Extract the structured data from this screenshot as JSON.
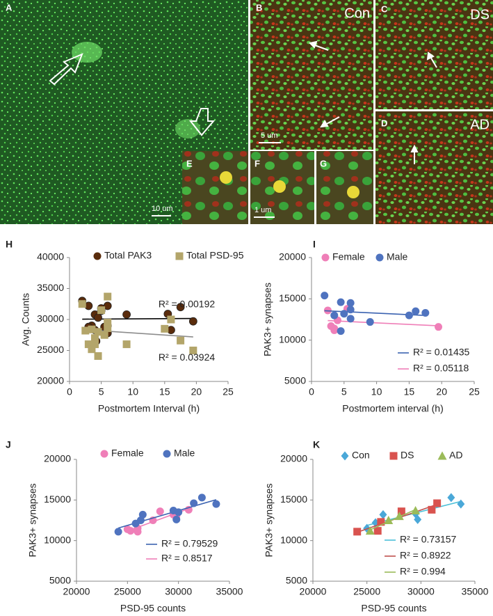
{
  "image_panels": [
    {
      "label": "A",
      "scale_bar": "10 um"
    },
    {
      "label": "B",
      "group": "Con",
      "scale_bar": "5 um"
    },
    {
      "label": "C",
      "group": "DS"
    },
    {
      "label": "D",
      "group": "AD"
    },
    {
      "label": "E"
    },
    {
      "label": "F",
      "scale_bar": "1 um"
    },
    {
      "label": "G"
    }
  ],
  "chart_data": [
    {
      "type": "scatter",
      "panel": "H",
      "xlabel": "Postmortem Interval (h)",
      "ylabel": "Avg. Counts",
      "xlim": [
        0,
        25
      ],
      "xticks": [
        0,
        5,
        10,
        15,
        20,
        25
      ],
      "ylim": [
        20000,
        40000
      ],
      "yticks": [
        20000,
        25000,
        30000,
        35000,
        40000
      ],
      "series": [
        {
          "name": "Total PAK3",
          "color": "#5a2c0c",
          "marker": "circle",
          "trend_color": "#000000",
          "fit_label": "R² = 0.00192",
          "x": [
            2,
            3,
            3.5,
            4,
            4.2,
            4.5,
            5,
            5,
            5.5,
            6,
            6,
            6,
            9,
            15.5,
            16,
            17.5,
            19.5,
            4,
            3
          ],
          "values": [
            33000,
            32200,
            29000,
            30800,
            26500,
            30300,
            31800,
            31400,
            28800,
            29000,
            32200,
            27800,
            30800,
            30900,
            28300,
            32000,
            29700,
            28300,
            28800
          ]
        },
        {
          "name": "Total PSD-95",
          "color": "#b3a56a",
          "marker": "square",
          "trend_color": "#8c8c8c",
          "fit_label": "R² = 0.03924",
          "x": [
            2,
            2.5,
            3,
            3.5,
            4,
            4,
            4.5,
            4.5,
            5,
            5.5,
            6,
            6,
            6,
            9,
            15,
            16,
            17.5,
            19.5,
            3.5
          ],
          "values": [
            32500,
            28200,
            26000,
            25200,
            27000,
            26000,
            24100,
            28000,
            31500,
            27500,
            33700,
            29500,
            28600,
            26000,
            28500,
            30000,
            26600,
            25000,
            28400
          ]
        }
      ]
    },
    {
      "type": "scatter",
      "panel": "I",
      "xlabel": "Postmortem interval (h)",
      "ylabel": "PAK3+ synapses",
      "xlim": [
        0,
        25
      ],
      "xticks": [
        0,
        5,
        10,
        15,
        20,
        25
      ],
      "ylim": [
        5000,
        20000
      ],
      "yticks": [
        5000,
        10000,
        15000,
        20000
      ],
      "series": [
        {
          "name": "Female",
          "color": "#ef7fb8",
          "marker": "circle",
          "trend_color": "#ef7fb8",
          "fit_label": "R² = 0.05118",
          "x": [
            2.5,
            3,
            3.5,
            4,
            5.5,
            19.5,
            3.5
          ],
          "values": [
            13600,
            11700,
            11200,
            12400,
            13800,
            11600,
            11400
          ]
        },
        {
          "name": "Male",
          "color": "#4f73bf",
          "marker": "circle",
          "trend_color": "#3a62b0",
          "fit_label": "R² = 0.01435",
          "x": [
            2,
            3.5,
            4.5,
            4.5,
            5,
            6,
            6,
            6,
            9,
            15,
            16,
            17.5
          ],
          "values": [
            15400,
            13000,
            14600,
            11100,
            13200,
            14500,
            13700,
            12600,
            12200,
            13000,
            13500,
            13300
          ]
        }
      ]
    },
    {
      "type": "scatter",
      "panel": "J",
      "xlabel": "PSD-95 counts",
      "ylabel": "PAK3+ synapses",
      "xlim": [
        20000,
        35000
      ],
      "xticks": [
        20000,
        25000,
        30000,
        35000
      ],
      "ylim": [
        5000,
        20000
      ],
      "yticks": [
        5000,
        10000,
        15000,
        20000
      ],
      "series": [
        {
          "name": "Female",
          "color": "#ef7fb8",
          "marker": "circle",
          "trend_color": "#ef7fb8",
          "fit_label": "R² = 0.8517",
          "x": [
            25000,
            25300,
            26000,
            26000,
            27500,
            28200,
            29500,
            31000,
            29800
          ],
          "values": [
            11400,
            11200,
            11100,
            11500,
            12500,
            13600,
            13200,
            13800,
            13000
          ]
        },
        {
          "name": "Male",
          "color": "#4f73bf",
          "marker": "circle",
          "trend_color": "#3a62b0",
          "fit_label": "R² = 0.79529",
          "x": [
            24100,
            25800,
            26500,
            26300,
            29500,
            29800,
            31500,
            32300,
            33700,
            30000
          ],
          "values": [
            11100,
            12100,
            13200,
            12500,
            13700,
            12600,
            14600,
            15300,
            14500,
            13500
          ]
        }
      ]
    },
    {
      "type": "scatter",
      "panel": "K",
      "xlabel": "PSD-95 counts",
      "ylabel": "PAK3+ synapses",
      "xlim": [
        20000,
        35000
      ],
      "xticks": [
        20000,
        25000,
        30000,
        35000
      ],
      "ylim": [
        5000,
        20000
      ],
      "yticks": [
        5000,
        10000,
        15000,
        20000
      ],
      "series": [
        {
          "name": "Con",
          "color": "#4aa8d8",
          "marker": "diamond",
          "trend_color": "#4ac0d8",
          "fit_label": "R² = 0.73157",
          "x": [
            25000,
            25800,
            26500,
            29500,
            29700,
            32800,
            33700
          ],
          "values": [
            11500,
            12200,
            13200,
            13300,
            12600,
            15300,
            14500
          ]
        },
        {
          "name": "DS",
          "color": "#d9534f",
          "marker": "square",
          "trend_color": "#c0504d",
          "fit_label": "R² = 0.8922",
          "x": [
            24100,
            26000,
            26300,
            28200,
            31000,
            31500
          ],
          "values": [
            11100,
            11200,
            12300,
            13600,
            13800,
            14600
          ]
        },
        {
          "name": "AD",
          "color": "#9bbb59",
          "marker": "triangle",
          "trend_color": "#9bbb59",
          "fit_label": "R² = 0.994",
          "x": [
            25300,
            27000,
            28000,
            29500
          ],
          "values": [
            11200,
            12500,
            13000,
            13700
          ]
        }
      ]
    }
  ]
}
